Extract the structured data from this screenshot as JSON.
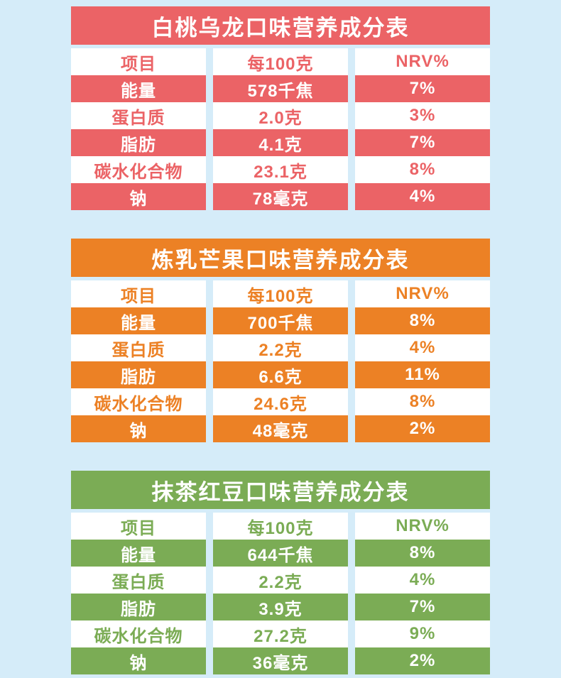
{
  "page": {
    "background_color": "#D5ECF9",
    "description_colors": {
      "table1_theme": "#EB6366",
      "table2_theme": "#EC8125",
      "table3_theme": "#7BAC55"
    }
  },
  "chart_data": [
    {
      "type": "table",
      "title": "白桃乌龙口味营养成分表",
      "theme_color": "#EB6366",
      "columns": [
        "项目",
        "每100克",
        "NRV%"
      ],
      "rows": [
        [
          "能量",
          "578千焦",
          "7%"
        ],
        [
          "蛋白质",
          "2.0克",
          "3%"
        ],
        [
          "脂肪",
          "4.1克",
          "7%"
        ],
        [
          "碳水化合物",
          "23.1克",
          "8%"
        ],
        [
          "钠",
          "78毫克",
          "4%"
        ]
      ]
    },
    {
      "type": "table",
      "title": "炼乳芒果口味营养成分表",
      "theme_color": "#EC8125",
      "columns": [
        "项目",
        "每100克",
        "NRV%"
      ],
      "rows": [
        [
          "能量",
          "700千焦",
          "8%"
        ],
        [
          "蛋白质",
          "2.2克",
          "4%"
        ],
        [
          "脂肪",
          "6.6克",
          "11%"
        ],
        [
          "碳水化合物",
          "24.6克",
          "8%"
        ],
        [
          "钠",
          "48毫克",
          "2%"
        ]
      ]
    },
    {
      "type": "table",
      "title": "抹茶红豆口味营养成分表",
      "theme_color": "#7BAC55",
      "columns": [
        "项目",
        "每100克",
        "NRV%"
      ],
      "rows": [
        [
          "能量",
          "644千焦",
          "8%"
        ],
        [
          "蛋白质",
          "2.2克",
          "4%"
        ],
        [
          "脂肪",
          "3.9克",
          "7%"
        ],
        [
          "碳水化合物",
          "27.2克",
          "9%"
        ],
        [
          "钠",
          "36毫克",
          "2%"
        ]
      ]
    }
  ]
}
